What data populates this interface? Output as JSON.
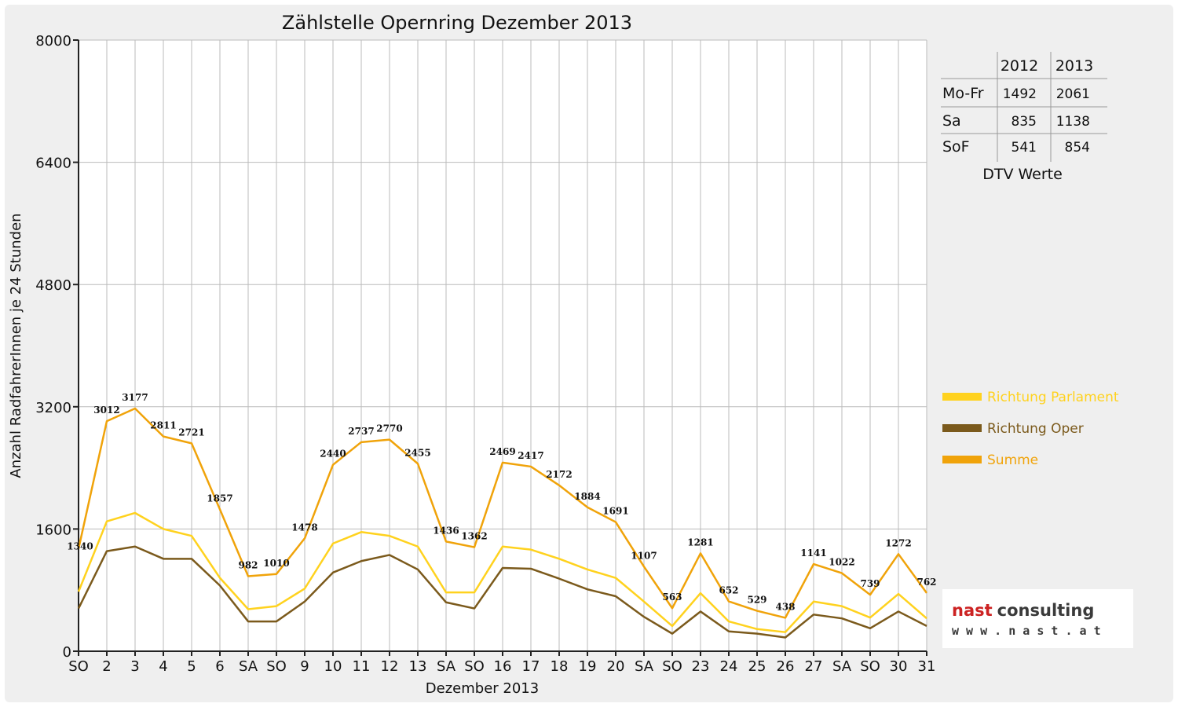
{
  "chart_data": {
    "type": "line",
    "title": "Zählstelle Opernring Dezember 2013",
    "xlabel": "Dezember 2013",
    "ylabel": "Anzahl RadfahrerInnen je 24 Stunden",
    "ylim": [
      0,
      8000
    ],
    "yticks": [
      0,
      1600,
      3200,
      4800,
      6400,
      8000
    ],
    "grid": true,
    "legend_position": "right",
    "categories": [
      "SO",
      "2",
      "3",
      "4",
      "5",
      "6",
      "SA",
      "SO",
      "9",
      "10",
      "11",
      "12",
      "13",
      "SA",
      "SO",
      "16",
      "17",
      "18",
      "19",
      "20",
      "SA",
      "SO",
      "23",
      "24",
      "25",
      "26",
      "27",
      "SA",
      "SO",
      "30",
      "31"
    ],
    "red_categories": [
      0,
      7,
      14,
      21,
      24,
      25,
      28
    ],
    "series": [
      {
        "name": "Richtung Parlament",
        "color": "#ffd21e",
        "values": [
          780,
          1700,
          1810,
          1600,
          1510,
          960,
          550,
          590,
          820,
          1410,
          1560,
          1510,
          1370,
          770,
          770,
          1370,
          1330,
          1210,
          1070,
          960,
          650,
          330,
          760,
          390,
          290,
          250,
          650,
          590,
          440,
          750,
          430
        ]
      },
      {
        "name": "Richtung Oper",
        "color": "#7b5a1c",
        "values": [
          560,
          1310,
          1370,
          1210,
          1210,
          860,
          390,
          390,
          650,
          1030,
          1180,
          1260,
          1070,
          640,
          560,
          1090,
          1080,
          950,
          810,
          720,
          450,
          230,
          520,
          260,
          230,
          180,
          480,
          430,
          300,
          520,
          330
        ]
      },
      {
        "name": "Summe",
        "color": "#f0a30a",
        "values": [
          1340,
          3012,
          3177,
          2811,
          2721,
          1857,
          982,
          1010,
          1478,
          2440,
          2737,
          2770,
          2455,
          1436,
          1362,
          2469,
          2417,
          2172,
          1884,
          1691,
          1107,
          563,
          1281,
          652,
          529,
          438,
          1141,
          1022,
          739,
          1272,
          762
        ]
      }
    ],
    "data_labels": [
      "1340",
      "3012",
      "3177",
      "2811",
      "2721",
      "1857",
      "982",
      "1010",
      "1478",
      "2440",
      "2737",
      "2770",
      "2455",
      "1436",
      "1362",
      "2469",
      "2417",
      "2172",
      "1884",
      "1691",
      "1107",
      "563",
      "1281",
      "652",
      "529",
      "438",
      "1141",
      "1022",
      "739",
      "1272",
      "762"
    ]
  },
  "dtv_table": {
    "headers": [
      "",
      "2012",
      "2013"
    ],
    "rows": [
      {
        "label": "Mo-Fr",
        "v2012": "1492",
        "v2013": "2061"
      },
      {
        "label": "Sa",
        "v2012": "835",
        "v2013": "1138"
      },
      {
        "label": "SoF",
        "v2012": "541",
        "v2013": "854"
      }
    ],
    "caption": "DTV Werte"
  },
  "logo": {
    "name": "nast consulting",
    "url": "w w w . n a s t . a t",
    "colors": {
      "nast": "#cc2222",
      "consulting": "#3a3a3a"
    }
  },
  "colors": {
    "red_label": "#dd0000",
    "grid": "#bbbbbb"
  }
}
